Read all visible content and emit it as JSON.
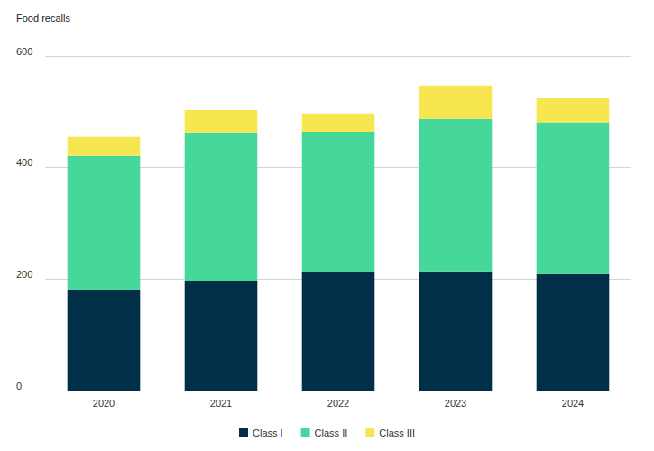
{
  "chart_data": {
    "type": "bar",
    "title": "Food recalls",
    "categories": [
      "2020",
      "2021",
      "2022",
      "2023",
      "2024"
    ],
    "series": [
      {
        "name": "Class I",
        "color": "#022f48",
        "values": [
          180,
          196,
          212,
          214,
          209
        ]
      },
      {
        "name": "Class II",
        "color": "#46d89a",
        "values": [
          241,
          267,
          252,
          273,
          272
        ]
      },
      {
        "name": "Class III",
        "color": "#f7e650",
        "values": [
          34,
          40,
          33,
          60,
          43
        ]
      }
    ],
    "stacked": true,
    "ylim": [
      0,
      600
    ],
    "yticks": [
      0,
      200,
      400,
      600
    ],
    "grid": true,
    "legend": "bottom"
  }
}
